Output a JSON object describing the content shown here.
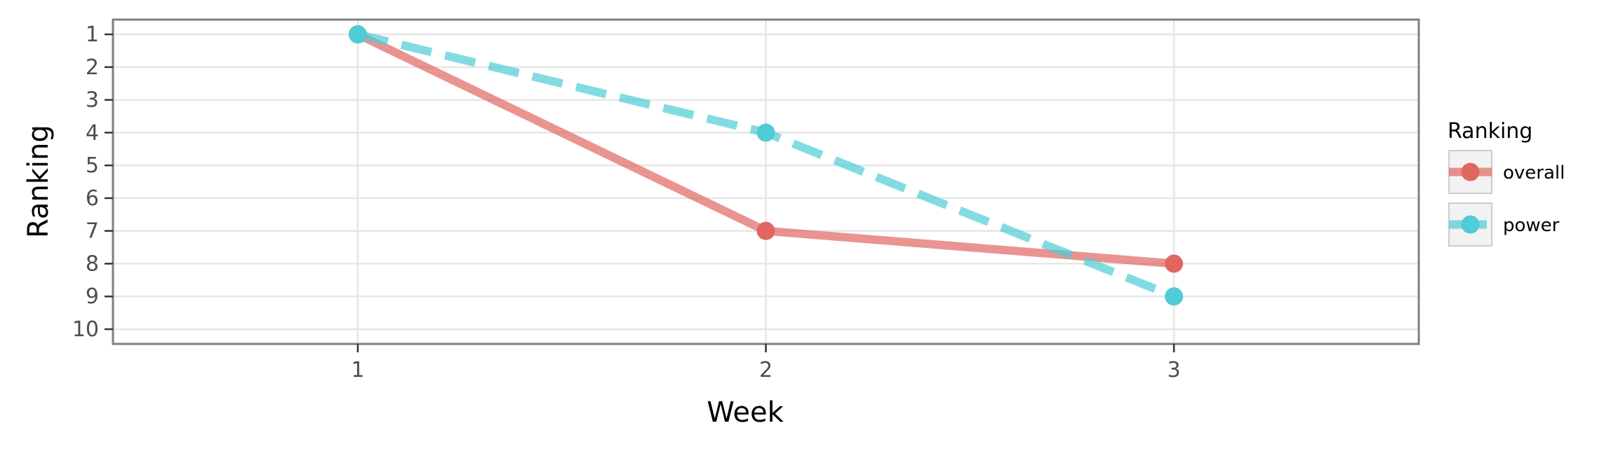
{
  "chart_data": {
    "type": "line",
    "title": "",
    "xlabel": "Week",
    "ylabel": "Ranking",
    "x": [
      1,
      2,
      3
    ],
    "xlim": [
      0.4,
      3.6
    ],
    "ylim": [
      10.45,
      0.55
    ],
    "y_reversed": true,
    "xticks": [
      1,
      2,
      3
    ],
    "yticks": [
      1,
      2,
      3,
      4,
      5,
      6,
      7,
      8,
      9,
      10
    ],
    "grid": true,
    "legend_title": "Ranking",
    "legend_position": "right",
    "series": [
      {
        "name": "overall",
        "values": [
          1,
          7,
          8
        ],
        "color": "#E06761",
        "line_style": "solid"
      },
      {
        "name": "power",
        "values": [
          1,
          4,
          9
        ],
        "color": "#4FCCD6",
        "line_style": "dashed"
      }
    ]
  }
}
